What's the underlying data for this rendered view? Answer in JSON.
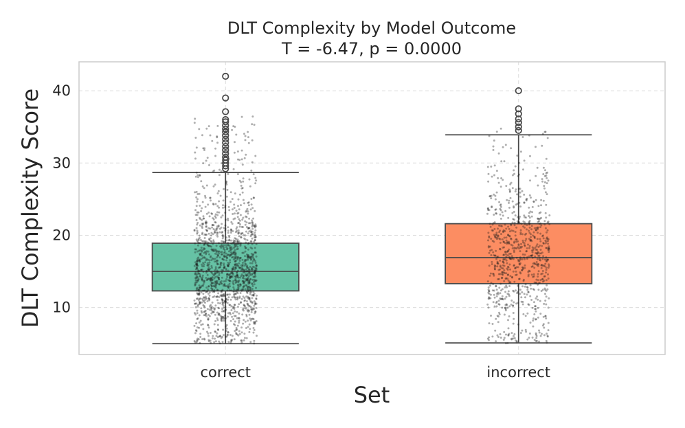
{
  "chart_data": {
    "type": "boxplot",
    "title": "DLT Complexity by Model Outcome",
    "subtitle": "T = -6.47, p = 0.0000",
    "xlabel": "Set",
    "ylabel": "DLT Complexity Score",
    "ylim": [
      3.5,
      44
    ],
    "yticks": [
      10,
      20,
      30,
      40
    ],
    "grid": true,
    "categories": [
      "correct",
      "incorrect"
    ],
    "series": [
      {
        "name": "correct",
        "color": "#66c2a5",
        "whisker_low": 5.0,
        "q1": 12.3,
        "median": 15.0,
        "q3": 18.9,
        "whisker_high": 28.7,
        "outliers": [
          29.2,
          29.6,
          30.0,
          30.4,
          30.8,
          31.3,
          31.8,
          32.3,
          32.8,
          33.3,
          33.8,
          34.3,
          34.7,
          35.2,
          35.7,
          36.0,
          37.1,
          39.0,
          42.0
        ],
        "jitter_n": 1500,
        "jitter_range": [
          5.0,
          42.0
        ]
      },
      {
        "name": "incorrect",
        "color": "#fc8d62",
        "whisker_low": 5.1,
        "q1": 13.3,
        "median": 16.9,
        "q3": 21.6,
        "whisker_high": 33.9,
        "outliers": [
          34.5,
          35.0,
          35.6,
          36.1,
          36.8,
          37.5,
          40.0
        ],
        "jitter_n": 850,
        "jitter_range": [
          5.0,
          40.0
        ]
      }
    ]
  }
}
